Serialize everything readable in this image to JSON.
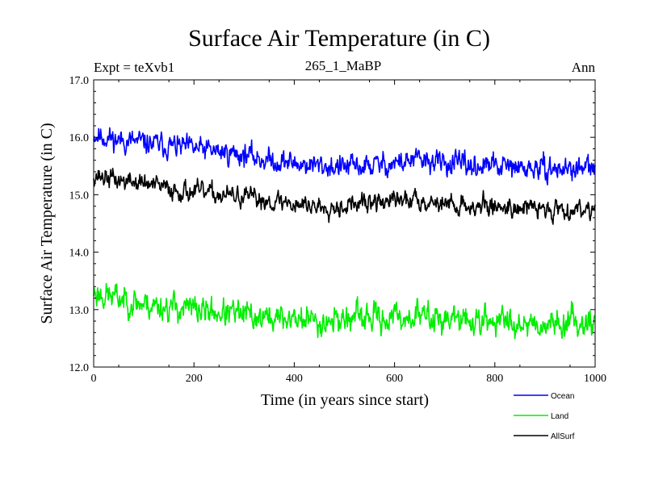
{
  "chart_data": {
    "type": "line",
    "title": "Surface Air Temperature (in C)",
    "subtitle_left": "Expt = teXvb1",
    "subtitle_center": "265_1_MaBP",
    "subtitle_right": "Ann",
    "xlabel": "Time (in years since start)",
    "ylabel": "Surface Air Temperature (in C)",
    "xlim": [
      0,
      1000
    ],
    "ylim": [
      12.0,
      17.0
    ],
    "xticks": [
      0,
      200,
      400,
      600,
      800,
      1000
    ],
    "xtick_labels": [
      "0",
      "200",
      "400",
      "600",
      "800",
      "1000"
    ],
    "yticks": [
      12.0,
      13.0,
      14.0,
      15.0,
      16.0,
      17.0
    ],
    "ytick_labels": [
      "12.0",
      "13.0",
      "14.0",
      "15.0",
      "16.0",
      "17.0"
    ],
    "legend_position": "bottom-right",
    "series": [
      {
        "name": "Ocean",
        "color": "#0000ff",
        "trend_x": [
          0,
          50,
          100,
          150,
          200,
          250,
          300,
          350,
          400,
          450,
          500,
          550,
          600,
          650,
          700,
          750,
          800,
          850,
          900,
          950,
          1000
        ],
        "trend_y": [
          16.05,
          15.95,
          15.9,
          15.85,
          15.8,
          15.75,
          15.7,
          15.6,
          15.55,
          15.5,
          15.48,
          15.5,
          15.55,
          15.6,
          15.55,
          15.5,
          15.5,
          15.45,
          15.45,
          15.45,
          15.45
        ],
        "noise_amplitude": 0.14,
        "seed": 11
      },
      {
        "name": "Land",
        "color": "#00ee00",
        "trend_x": [
          0,
          50,
          100,
          150,
          200,
          250,
          300,
          350,
          400,
          450,
          500,
          550,
          600,
          650,
          700,
          750,
          800,
          850,
          900,
          950,
          1000
        ],
        "trend_y": [
          13.3,
          13.2,
          13.1,
          13.05,
          13.0,
          12.95,
          12.9,
          12.85,
          12.85,
          12.8,
          12.85,
          12.85,
          12.85,
          12.9,
          12.85,
          12.8,
          12.8,
          12.8,
          12.75,
          12.8,
          12.8
        ],
        "noise_amplitude": 0.17,
        "seed": 23
      },
      {
        "name": "AllSurf",
        "color": "#000000",
        "trend_x": [
          0,
          50,
          100,
          150,
          200,
          250,
          300,
          350,
          400,
          450,
          500,
          550,
          600,
          650,
          700,
          750,
          800,
          850,
          900,
          950,
          1000
        ],
        "trend_y": [
          15.35,
          15.25,
          15.2,
          15.1,
          15.05,
          15.0,
          14.95,
          14.9,
          14.85,
          14.8,
          14.82,
          14.85,
          14.9,
          14.92,
          14.85,
          14.8,
          14.8,
          14.78,
          14.75,
          14.75,
          14.78
        ],
        "noise_amplitude": 0.12,
        "seed": 37
      }
    ]
  }
}
